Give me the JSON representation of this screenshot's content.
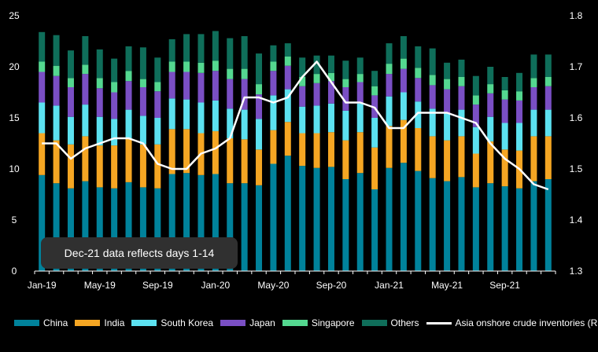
{
  "colors": {
    "China": "#00829b",
    "India": "#f5a623",
    "South Korea": "#5ce1f0",
    "Japan": "#7a4fc4",
    "Singapore": "#54d890",
    "Others": "#0f6e5a",
    "line": "#ffffff"
  },
  "annotation": "Dec-21 data reflects days 1-14",
  "legend": [
    {
      "name": "China",
      "kind": "bar"
    },
    {
      "name": "India",
      "kind": "bar"
    },
    {
      "name": "South Korea",
      "kind": "bar"
    },
    {
      "name": "Japan",
      "kind": "bar"
    },
    {
      "name": "Singapore",
      "kind": "bar"
    },
    {
      "name": "Others",
      "kind": "bar"
    },
    {
      "name": "Asia onshore crude inventories (RHS)",
      "kind": "line"
    }
  ],
  "chart_data": {
    "type": "bar",
    "stacked": true,
    "categories": [
      "Jan-19",
      "Feb-19",
      "Mar-19",
      "Apr-19",
      "May-19",
      "Jun-19",
      "Jul-19",
      "Aug-19",
      "Sep-19",
      "Oct-19",
      "Nov-19",
      "Dec-19",
      "Jan-20",
      "Feb-20",
      "Mar-20",
      "Apr-20",
      "May-20",
      "Jun-20",
      "Jul-20",
      "Aug-20",
      "Sep-20",
      "Oct-20",
      "Nov-20",
      "Dec-20",
      "Jan-21",
      "Feb-21",
      "Mar-21",
      "Apr-21",
      "May-21",
      "Jun-21",
      "Jul-21",
      "Aug-21",
      "Sep-21",
      "Oct-21",
      "Nov-21",
      "Dec-21"
    ],
    "x_tick_labels": [
      "Jan-19",
      "May-19",
      "Sep-19",
      "Jan-20",
      "May-20",
      "Sep-20",
      "Jan-21",
      "May-21",
      "Sep-21"
    ],
    "x_tick_every": 4,
    "y_ticks": [
      0,
      5,
      10,
      15,
      20,
      25
    ],
    "ylim": [
      0,
      25
    ],
    "y2_ticks": [
      1.3,
      1.4,
      1.5,
      1.6,
      1.7,
      1.8
    ],
    "y2lim": [
      1.3,
      1.8
    ],
    "series": [
      {
        "name": "China",
        "values": [
          9.4,
          8.6,
          8.1,
          8.8,
          8.2,
          8.1,
          8.7,
          8.2,
          8.1,
          9.5,
          9.6,
          9.4,
          9.5,
          8.6,
          8.6,
          8.4,
          10.5,
          11.3,
          10.3,
          10.1,
          10.2,
          9.0,
          9.6,
          8.0,
          10.1,
          10.6,
          9.8,
          9.1,
          8.8,
          9.2,
          8.2,
          8.6,
          8.3,
          8.1,
          8.8,
          9.0
        ]
      },
      {
        "name": "India",
        "values": [
          4.1,
          4.2,
          4.3,
          4.4,
          4.1,
          4.2,
          4.3,
          4.2,
          4.3,
          4.4,
          4.3,
          4.1,
          4.2,
          4.4,
          4.3,
          3.5,
          3.3,
          3.3,
          3.2,
          3.4,
          3.4,
          3.8,
          4.0,
          4.1,
          4.1,
          4.2,
          4.2,
          4.1,
          4.0,
          4.0,
          3.3,
          4.1,
          3.6,
          3.7,
          4.4,
          4.2
        ]
      },
      {
        "name": "South Korea",
        "values": [
          3.0,
          3.4,
          2.7,
          3.1,
          2.8,
          2.6,
          2.8,
          2.8,
          2.6,
          3.0,
          2.9,
          3.0,
          3.0,
          2.9,
          2.9,
          3.0,
          3.4,
          3.2,
          2.6,
          2.7,
          2.8,
          2.9,
          2.8,
          2.9,
          2.9,
          2.7,
          2.6,
          2.7,
          2.7,
          2.6,
          2.6,
          2.4,
          2.6,
          2.7,
          2.6,
          2.6
        ]
      },
      {
        "name": "Japan",
        "values": [
          3.0,
          2.9,
          2.9,
          3.0,
          2.8,
          2.6,
          2.8,
          2.8,
          2.6,
          2.6,
          2.7,
          2.9,
          2.9,
          2.9,
          3.0,
          2.4,
          2.4,
          2.3,
          2.0,
          2.2,
          2.2,
          2.3,
          2.1,
          2.2,
          2.2,
          2.3,
          2.3,
          2.3,
          2.3,
          2.3,
          2.2,
          2.3,
          2.3,
          2.2,
          2.2,
          2.3
        ]
      },
      {
        "name": "Singapore",
        "values": [
          1.0,
          1.0,
          0.9,
          0.9,
          1.0,
          1.0,
          1.0,
          0.8,
          0.9,
          1.0,
          1.0,
          1.0,
          1.0,
          1.0,
          1.0,
          1.0,
          0.9,
          0.9,
          0.9,
          0.9,
          0.8,
          0.8,
          0.8,
          0.9,
          1.0,
          1.0,
          1.0,
          1.0,
          1.0,
          0.9,
          0.9,
          0.9,
          0.9,
          0.9,
          0.9,
          0.9
        ]
      },
      {
        "name": "Others",
        "values": [
          2.9,
          3.0,
          2.7,
          2.8,
          2.8,
          2.3,
          2.4,
          3.1,
          2.4,
          2.2,
          2.7,
          2.8,
          2.9,
          3.0,
          3.2,
          3.0,
          1.6,
          1.3,
          1.9,
          1.8,
          1.7,
          1.8,
          1.6,
          1.5,
          2.0,
          2.2,
          2.1,
          2.6,
          1.6,
          1.7,
          1.9,
          1.7,
          1.3,
          1.8,
          2.3,
          2.2
        ]
      }
    ],
    "line": {
      "name": "Asia onshore crude inventories (RHS)",
      "axis": "right",
      "values": [
        1.55,
        1.55,
        1.52,
        1.54,
        1.55,
        1.56,
        1.56,
        1.55,
        1.51,
        1.5,
        1.5,
        1.53,
        1.54,
        1.56,
        1.64,
        1.64,
        1.63,
        1.64,
        1.68,
        1.71,
        1.67,
        1.63,
        1.63,
        1.62,
        1.58,
        1.58,
        1.61,
        1.61,
        1.61,
        1.6,
        1.59,
        1.55,
        1.52,
        1.5,
        1.47,
        1.46
      ]
    }
  }
}
